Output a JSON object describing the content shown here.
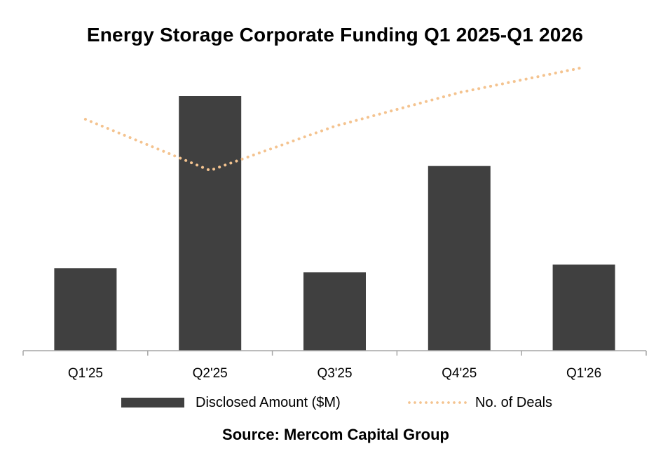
{
  "chart_data": {
    "type": "bar",
    "title": "Energy Storage Corporate Funding Q1 2025-Q1 2026",
    "categories": [
      "Q1'25",
      "Q2'25",
      "Q3'25",
      "Q4'25",
      "Q1'26"
    ],
    "xlabel": "",
    "ylabel": "",
    "grid": false,
    "legend_position": "bottom",
    "series": [
      {
        "name": "Disclosed Amount ($M)",
        "type": "bar",
        "color": "#404040",
        "values": [
          118,
          364,
          112,
          264,
          123
        ]
      },
      {
        "name": "No. of Deals",
        "type": "line",
        "style": "dotted",
        "color": "#F4C38F",
        "values": [
          330,
          257,
          320,
          368,
          404
        ]
      }
    ],
    "source": "Source: Mercom Capital Group"
  }
}
